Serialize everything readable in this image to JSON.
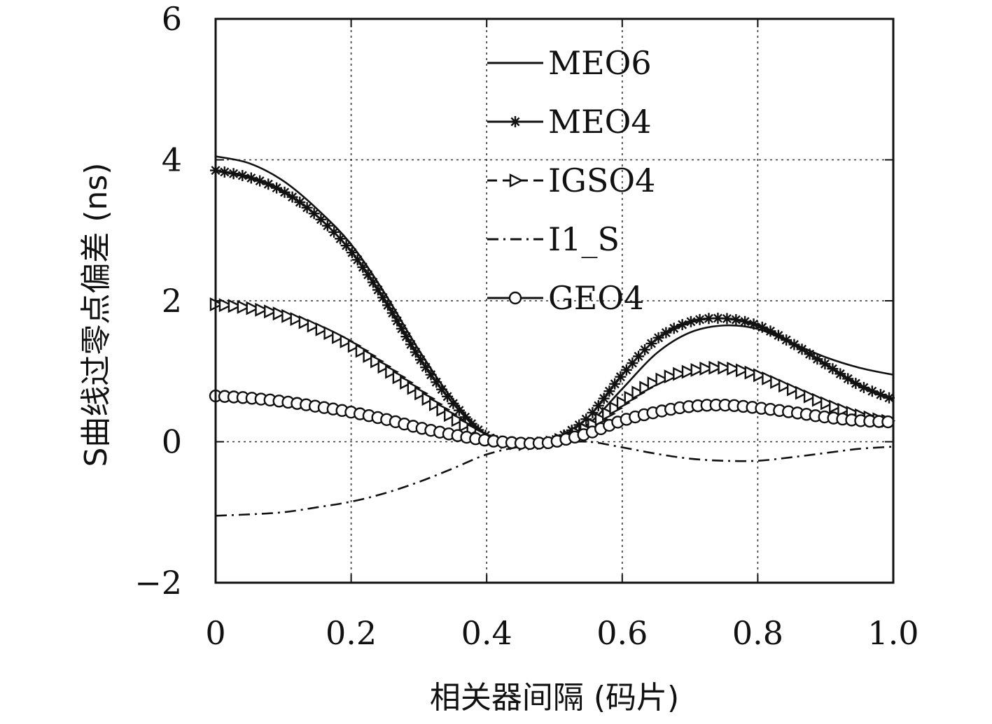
{
  "chart_data": {
    "type": "line",
    "xlabel": "相关器间隔 (码片)",
    "ylabel": "S曲线过零点偏差 (ns)",
    "xlim": [
      0,
      1.0
    ],
    "ylim": [
      -2,
      6
    ],
    "x_ticks": [
      {
        "value": 0,
        "label": "0"
      },
      {
        "value": 0.2,
        "label": "0.2"
      },
      {
        "value": 0.4,
        "label": "0.4"
      },
      {
        "value": 0.6,
        "label": "0.6"
      },
      {
        "value": 0.8,
        "label": "0.8"
      },
      {
        "value": 1.0,
        "label": "1.0"
      }
    ],
    "y_ticks": [
      {
        "value": -2,
        "label": "−2"
      },
      {
        "value": 0,
        "label": "0"
      },
      {
        "value": 2,
        "label": "2"
      },
      {
        "value": 4,
        "label": "4"
      },
      {
        "value": 6,
        "label": "6"
      }
    ],
    "grid": true,
    "legend_position": "top-center",
    "series": [
      {
        "name": "MEO6",
        "style": "solid",
        "marker": "none",
        "x": [
          0,
          0.05,
          0.1,
          0.15,
          0.2,
          0.25,
          0.3,
          0.35,
          0.4,
          0.45,
          0.475,
          0.5,
          0.55,
          0.6,
          0.65,
          0.7,
          0.75,
          0.8,
          0.85,
          0.9,
          0.95,
          1.0
        ],
        "y": [
          4.05,
          3.95,
          3.7,
          3.3,
          2.8,
          2.1,
          1.3,
          0.6,
          0.1,
          -0.03,
          -0.02,
          0.0,
          0.25,
          0.75,
          1.25,
          1.55,
          1.65,
          1.6,
          1.4,
          1.2,
          1.05,
          0.95
        ]
      },
      {
        "name": "MEO4",
        "style": "solid",
        "marker": "asterisk",
        "x": [
          0,
          0.05,
          0.1,
          0.15,
          0.2,
          0.25,
          0.3,
          0.35,
          0.4,
          0.45,
          0.475,
          0.5,
          0.55,
          0.6,
          0.65,
          0.7,
          0.75,
          0.8,
          0.85,
          0.9,
          0.95,
          1.0
        ],
        "y": [
          3.85,
          3.75,
          3.55,
          3.2,
          2.7,
          2.0,
          1.2,
          0.55,
          0.08,
          -0.03,
          -0.02,
          0.02,
          0.35,
          0.95,
          1.45,
          1.7,
          1.75,
          1.65,
          1.4,
          1.1,
          0.8,
          0.6
        ]
      },
      {
        "name": "IGSO4",
        "style": "dashed",
        "marker": "triangle-right",
        "x": [
          0,
          0.05,
          0.1,
          0.15,
          0.2,
          0.25,
          0.3,
          0.35,
          0.4,
          0.45,
          0.475,
          0.5,
          0.55,
          0.6,
          0.65,
          0.7,
          0.75,
          0.8,
          0.85,
          0.9,
          0.95,
          1.0
        ],
        "y": [
          1.95,
          1.9,
          1.8,
          1.62,
          1.38,
          1.05,
          0.7,
          0.35,
          0.06,
          -0.03,
          -0.02,
          0.0,
          0.2,
          0.55,
          0.85,
          1.0,
          1.05,
          0.95,
          0.75,
          0.55,
          0.38,
          0.28
        ]
      },
      {
        "name": "I1_S",
        "style": "dashdot",
        "marker": "none",
        "x": [
          0,
          0.05,
          0.1,
          0.15,
          0.2,
          0.25,
          0.3,
          0.35,
          0.4,
          0.45,
          0.5,
          0.55,
          0.6,
          0.65,
          0.7,
          0.75,
          0.8,
          0.85,
          0.9,
          0.95,
          1.0
        ],
        "y": [
          -1.05,
          -1.03,
          -1.0,
          -0.93,
          -0.85,
          -0.73,
          -0.57,
          -0.38,
          -0.18,
          -0.07,
          -0.02,
          0.0,
          -0.08,
          -0.17,
          -0.24,
          -0.27,
          -0.27,
          -0.22,
          -0.16,
          -0.1,
          -0.07
        ]
      },
      {
        "name": "GEO4",
        "style": "solid",
        "marker": "circle",
        "x": [
          0,
          0.05,
          0.1,
          0.15,
          0.2,
          0.25,
          0.3,
          0.35,
          0.4,
          0.45,
          0.475,
          0.5,
          0.55,
          0.6,
          0.65,
          0.7,
          0.75,
          0.8,
          0.85,
          0.9,
          0.95,
          1.0
        ],
        "y": [
          0.65,
          0.62,
          0.57,
          0.5,
          0.42,
          0.32,
          0.2,
          0.1,
          0.02,
          -0.02,
          -0.02,
          0.0,
          0.12,
          0.3,
          0.42,
          0.5,
          0.52,
          0.48,
          0.42,
          0.35,
          0.3,
          0.28
        ]
      }
    ]
  }
}
